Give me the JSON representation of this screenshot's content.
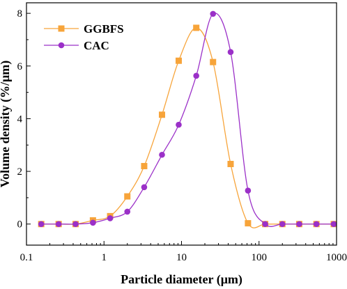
{
  "chart_data": {
    "type": "line",
    "xlabel": "Particle diameter (μm)",
    "ylabel": "Volume density (%/μm)",
    "xscale": "log",
    "xlim": [
      0.1,
      1000
    ],
    "ylim": [
      -0.8,
      8.4
    ],
    "x_ticks": [
      0.1,
      1,
      10,
      100,
      1000
    ],
    "x_tick_labels": [
      "0.1",
      "1",
      "10",
      "100",
      "1000"
    ],
    "y_ticks": [
      0,
      2,
      4,
      6,
      8
    ],
    "y_tick_labels": [
      "0",
      "2",
      "4",
      "6",
      "8"
    ],
    "legend_position": "top-left",
    "series": [
      {
        "name": "GGBFS",
        "color": "#F7A43A",
        "marker": "square",
        "x": [
          0.155,
          0.26,
          0.43,
          0.72,
          1.2,
          2.0,
          3.3,
          5.6,
          9.2,
          15.5,
          25.5,
          43,
          72,
          120,
          200,
          330,
          550,
          920
        ],
        "y": [
          0.0,
          0.0,
          0.0,
          0.14,
          0.3,
          1.05,
          2.2,
          4.15,
          6.2,
          7.45,
          6.15,
          2.28,
          0.03,
          0.0,
          0.0,
          0.0,
          0.0,
          0.0
        ]
      },
      {
        "name": "CAC",
        "color": "#9B30C8",
        "marker": "circle",
        "x": [
          0.155,
          0.26,
          0.43,
          0.72,
          1.2,
          2.0,
          3.3,
          5.6,
          9.2,
          15.5,
          25.5,
          43,
          72,
          120,
          200,
          330,
          550,
          920
        ],
        "y": [
          0.0,
          0.0,
          0.0,
          0.05,
          0.22,
          0.47,
          1.4,
          2.63,
          3.77,
          5.63,
          7.98,
          6.53,
          1.27,
          0.0,
          0.0,
          0.0,
          0.0,
          0.0
        ]
      }
    ]
  }
}
